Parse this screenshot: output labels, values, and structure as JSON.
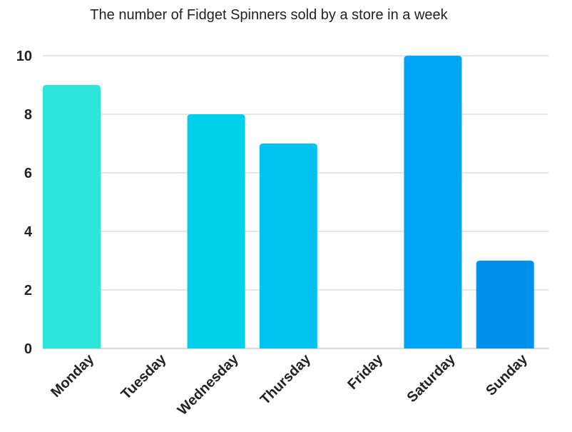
{
  "chart_data": {
    "type": "bar",
    "title": "The number of Fidget Spinners sold by a store in a week",
    "xlabel": "",
    "ylabel": "",
    "categories": [
      "Monday",
      "Tuesday",
      "Wednesday",
      "Thursday",
      "Friday",
      "Saturday",
      "Sunday"
    ],
    "values": [
      9,
      0,
      8,
      7,
      0,
      10,
      3
    ],
    "ylim": [
      0,
      10
    ],
    "yticks": [
      0,
      2,
      4,
      6,
      8,
      10
    ],
    "grid": true,
    "legend": "none",
    "bar_colors": [
      "#2ee5d9",
      "#1fd9e0",
      "#00cfe8",
      "#00c2ee",
      "#00b3f2",
      "#00a6f4",
      "#0091ea"
    ]
  }
}
